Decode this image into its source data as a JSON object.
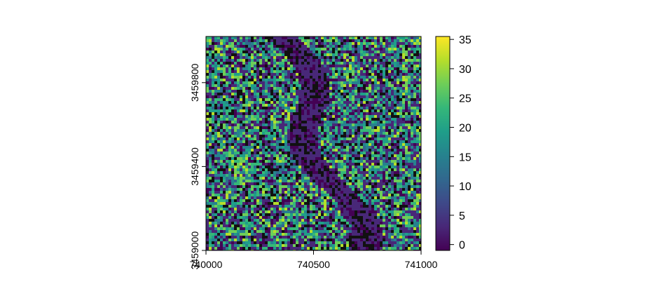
{
  "chart_data": {
    "type": "heatmap",
    "title": "",
    "xlabel": "",
    "ylabel": "",
    "x_ticks": [
      740000,
      740500,
      741000
    ],
    "y_ticks": [
      3459000,
      3459400,
      3459800
    ],
    "xlim": [
      740000,
      741000
    ],
    "ylim": [
      3459000,
      3460020
    ],
    "colorbar": {
      "ticks": [
        0,
        5,
        10,
        15,
        20,
        25,
        30,
        35
      ],
      "range": [
        -1,
        35.5
      ],
      "colormap": "viridis",
      "stops": [
        "#440154",
        "#482878",
        "#3e4989",
        "#31688e",
        "#26828e",
        "#1f9e89",
        "#35b779",
        "#6ece58",
        "#b5de2b",
        "#fde725"
      ]
    },
    "legend": "right",
    "grid": false
  }
}
